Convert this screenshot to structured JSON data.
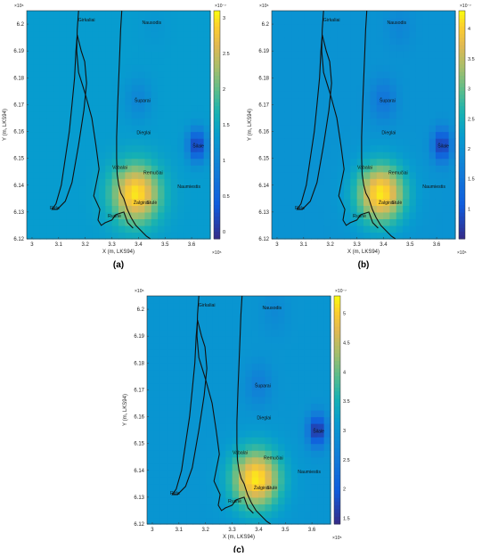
{
  "chart_data": [
    {
      "type": "heatmap",
      "panel_label": "(a)",
      "xlabel": "X (m, LKS94)",
      "ylabel": "Y (m, LKS94)",
      "x_exponent": "×10⁵",
      "y_exponent": "×10⁶",
      "xlim": [
        2.98,
        3.67
      ],
      "ylim": [
        6.12,
        6.205
      ],
      "x_ticks": [
        "3",
        "3.1",
        "3.2",
        "3.3",
        "3.4",
        "3.5",
        "3.6"
      ],
      "y_ticks": [
        "6.12",
        "6.13",
        "6.14",
        "6.15",
        "6.16",
        "6.17",
        "6.18",
        "6.19",
        "6.2"
      ],
      "colorbar": {
        "exponent": "×10⁻⁷",
        "range": [
          -0.1,
          3.1
        ],
        "ticks": [
          "0",
          "0.5",
          "1",
          "1.5",
          "2",
          "2.5",
          "3"
        ]
      },
      "field": {
        "description_units": "colorbar units",
        "hotspots": [
          {
            "x": 3.39,
            "y": 6.137,
            "value": 3.0
          },
          {
            "x": 3.62,
            "y": 6.155,
            "value": 0.1
          },
          {
            "x": 3.4,
            "y": 6.172,
            "value": 1.0
          },
          {
            "x": 3.46,
            "y": 6.199,
            "value": 1.25
          }
        ]
      }
    },
    {
      "type": "heatmap",
      "panel_label": "(b)",
      "xlabel": "X (m, LKS94)",
      "ylabel": "Y (m, LKS94)",
      "x_exponent": "×10⁵",
      "y_exponent": "×10⁶",
      "xlim": [
        2.98,
        3.67
      ],
      "ylim": [
        6.12,
        6.205
      ],
      "x_ticks": [
        "3",
        "3.1",
        "3.2",
        "3.3",
        "3.4",
        "3.5",
        "3.6"
      ],
      "y_ticks": [
        "6.12",
        "6.13",
        "6.14",
        "6.15",
        "6.16",
        "6.17",
        "6.18",
        "6.19",
        "6.2"
      ],
      "colorbar": {
        "exponent": "×10⁻⁷",
        "range": [
          0.5,
          4.3
        ],
        "ticks": [
          "1",
          "1.5",
          "2",
          "2.5",
          "3",
          "3.5",
          "4"
        ]
      },
      "field": {
        "hotspots": [
          {
            "x": 3.39,
            "y": 6.137,
            "value": 4.2
          },
          {
            "x": 3.62,
            "y": 6.155,
            "value": 0.7
          },
          {
            "x": 3.4,
            "y": 6.172,
            "value": 1.5
          },
          {
            "x": 3.46,
            "y": 6.199,
            "value": 1.8
          }
        ]
      }
    },
    {
      "type": "heatmap",
      "panel_label": "(c)",
      "xlabel": "X (m, LKS94)",
      "ylabel": "Y (m, LKS94)",
      "x_exponent": "×10⁵",
      "y_exponent": "×10⁶",
      "xlim": [
        2.98,
        3.67
      ],
      "ylim": [
        6.12,
        6.205
      ],
      "x_ticks": [
        "3",
        "3.1",
        "3.2",
        "3.3",
        "3.4",
        "3.5",
        "3.6"
      ],
      "y_ticks": [
        "6.12",
        "6.13",
        "6.14",
        "6.15",
        "6.16",
        "6.17",
        "6.18",
        "6.19",
        "6.2"
      ],
      "colorbar": {
        "exponent": "×10⁻⁷",
        "range": [
          1.4,
          5.3
        ],
        "ticks": [
          "1.5",
          "2",
          "2.5",
          "3",
          "3.5",
          "4",
          "4.5",
          "5"
        ]
      },
      "field": {
        "hotspots": [
          {
            "x": 3.39,
            "y": 6.137,
            "value": 5.2
          },
          {
            "x": 3.62,
            "y": 6.155,
            "value": 1.5
          },
          {
            "x": 3.4,
            "y": 6.172,
            "value": 2.6
          },
          {
            "x": 3.46,
            "y": 6.199,
            "value": 2.8
          }
        ]
      }
    }
  ],
  "place_names": [
    {
      "name": "Girkaliai",
      "x": 3.205,
      "y": 6.201
    },
    {
      "name": "Nausodis",
      "x": 3.45,
      "y": 6.2
    },
    {
      "name": "Šuparai",
      "x": 3.415,
      "y": 6.171
    },
    {
      "name": "Dieglai",
      "x": 3.42,
      "y": 6.159
    },
    {
      "name": "Šilale",
      "x": 3.625,
      "y": 6.154
    },
    {
      "name": "Vabalai",
      "x": 3.33,
      "y": 6.146
    },
    {
      "name": "Remučiai",
      "x": 3.455,
      "y": 6.144
    },
    {
      "name": "Naumiestis",
      "x": 3.59,
      "y": 6.139
    },
    {
      "name": "Žalgirai",
      "x": 3.41,
      "y": 6.133
    },
    {
      "name": "Stulė",
      "x": 3.45,
      "y": 6.133
    },
    {
      "name": "Rida",
      "x": 3.085,
      "y": 6.131
    },
    {
      "name": "Rusnė",
      "x": 3.31,
      "y": 6.128
    }
  ],
  "colormap": "parula"
}
